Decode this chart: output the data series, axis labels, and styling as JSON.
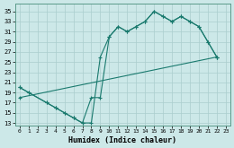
{
  "xlabel": "Humidex (Indice chaleur)",
  "bg_color": "#cce8e8",
  "line_color": "#1a7a6e",
  "grid_color": "#aacece",
  "xlim": [
    -0.5,
    23.5
  ],
  "ylim": [
    12.5,
    36.5
  ],
  "xticks": [
    0,
    1,
    2,
    3,
    4,
    5,
    6,
    7,
    8,
    9,
    10,
    11,
    12,
    13,
    14,
    15,
    16,
    17,
    18,
    19,
    20,
    21,
    22,
    23
  ],
  "yticks": [
    13,
    15,
    17,
    19,
    21,
    23,
    25,
    27,
    29,
    31,
    33,
    35
  ],
  "line1_x": [
    0,
    1,
    3,
    4,
    5,
    6,
    7,
    8,
    9,
    10,
    11,
    12,
    13,
    14,
    15,
    16,
    17,
    18,
    19,
    20,
    21,
    22
  ],
  "line1_y": [
    20,
    19,
    17,
    16,
    15,
    14,
    13,
    13,
    26,
    30,
    32,
    31,
    32,
    33,
    35,
    34,
    33,
    34,
    33,
    32,
    29,
    26
  ],
  "line2_x": [
    0,
    1,
    3,
    4,
    5,
    6,
    7,
    8,
    9,
    10,
    11,
    12,
    13,
    14,
    15,
    16,
    17,
    18,
    19,
    20,
    21,
    22
  ],
  "line2_y": [
    20,
    19,
    17,
    16,
    15,
    14,
    13,
    18,
    18,
    30,
    32,
    31,
    32,
    33,
    35,
    34,
    33,
    34,
    33,
    32,
    29,
    26
  ],
  "line3_x": [
    0,
    22
  ],
  "line3_y": [
    18,
    26
  ]
}
